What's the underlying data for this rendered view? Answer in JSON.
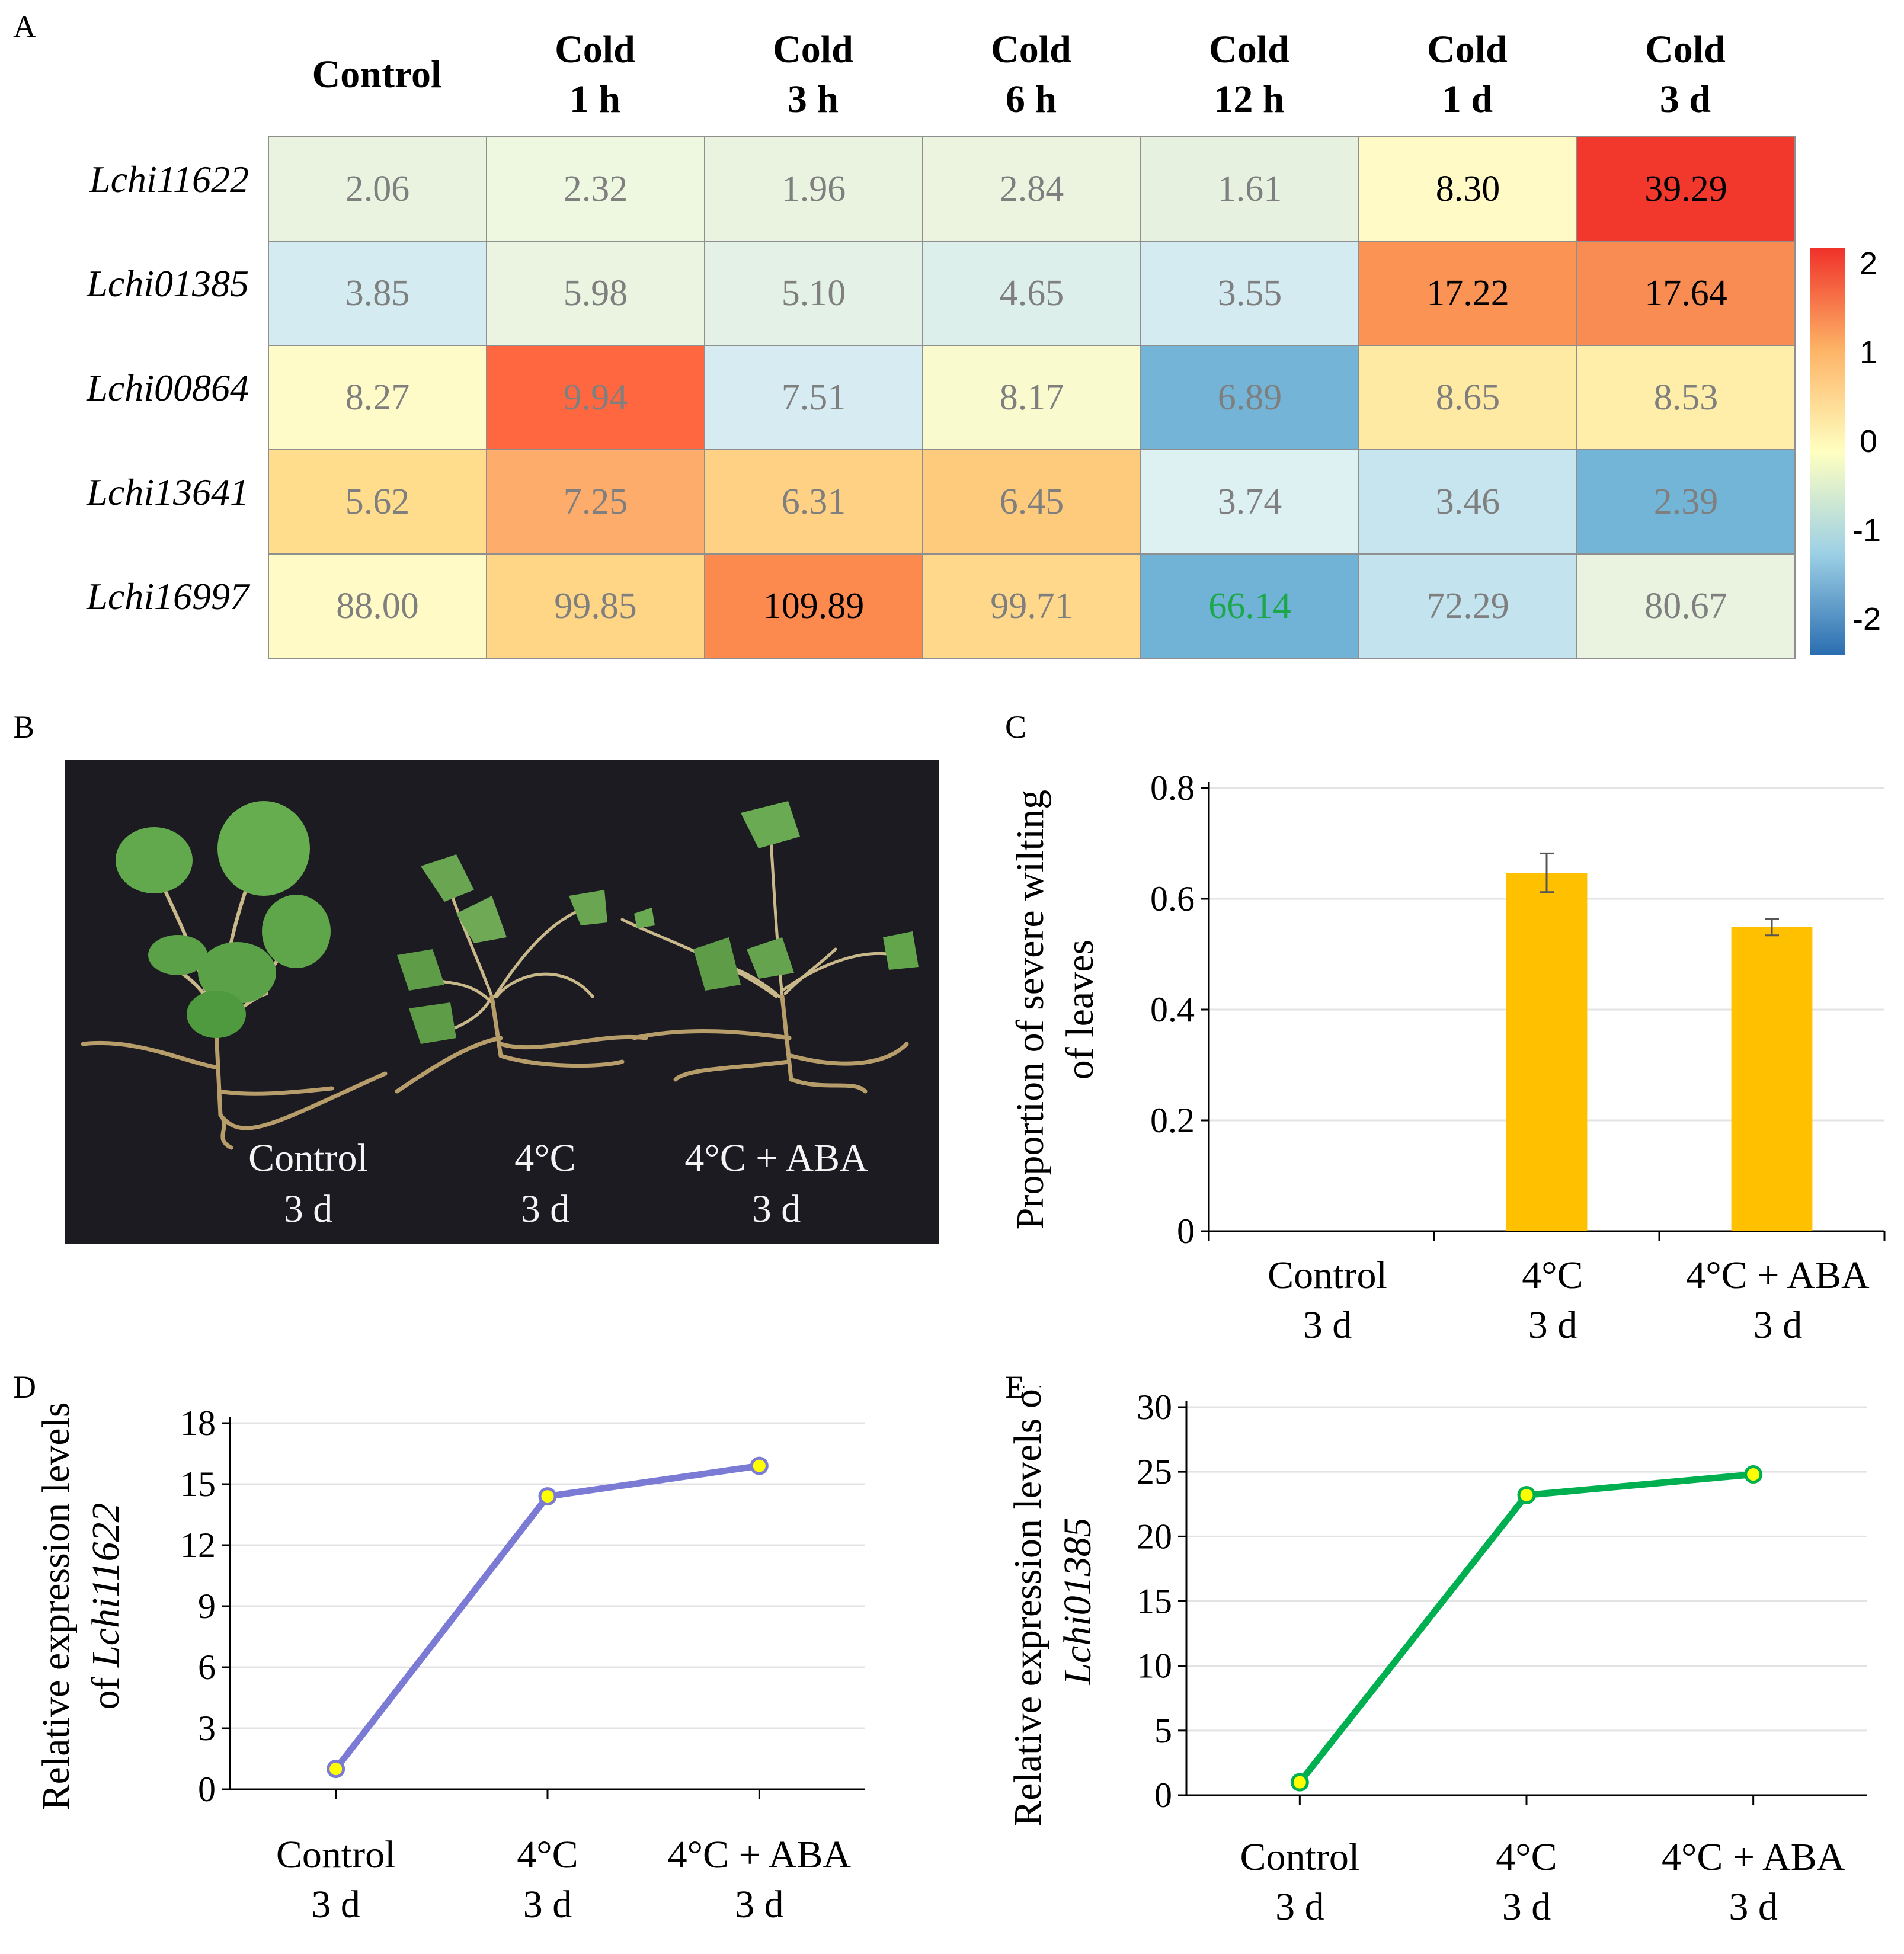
{
  "panels": {
    "a": "A",
    "b": "B",
    "c": "C",
    "d": "D",
    "e": "E"
  },
  "heatmap": {
    "columns": [
      {
        "line1": "Control",
        "line2": ""
      },
      {
        "line1": "Cold",
        "line2": "1 h"
      },
      {
        "line1": "Cold",
        "line2": "3 h"
      },
      {
        "line1": "Cold",
        "line2": "6 h"
      },
      {
        "line1": "Cold",
        "line2": "12 h"
      },
      {
        "line1": "Cold",
        "line2": "1 d"
      },
      {
        "line1": "Cold",
        "line2": "3 d"
      }
    ],
    "rows": [
      {
        "gene": "Lchi11622",
        "values": [
          "2.06",
          "2.32",
          "1.96",
          "2.84",
          "1.61",
          "8.30",
          "39.29"
        ],
        "colors": [
          "#e9f3df",
          "#eef7df",
          "#e9f3df",
          "#ecf4df",
          "#e6f1e0",
          "#fffac6",
          "#f2382c"
        ],
        "text_colors": [
          "#7f7f7f",
          "#7f7f7f",
          "#7f7f7f",
          "#7f7f7f",
          "#7f7f7f",
          "#000000",
          "#000000"
        ]
      },
      {
        "gene": "Lchi01385",
        "values": [
          "3.85",
          "5.98",
          "5.10",
          "4.65",
          "3.55",
          "17.22",
          "17.64"
        ],
        "colors": [
          "#d4ecf1",
          "#eaf4e0",
          "#e3f1e6",
          "#dcefea",
          "#d3ebf1",
          "#fa9353",
          "#f98c52"
        ],
        "text_colors": [
          "#7f7f7f",
          "#7f7f7f",
          "#7f7f7f",
          "#7f7f7f",
          "#7f7f7f",
          "#000000",
          "#000000"
        ]
      },
      {
        "gene": "Lchi00864",
        "values": [
          "8.27",
          "9.94",
          "7.51",
          "8.17",
          "6.89",
          "8.65",
          "8.53"
        ],
        "colors": [
          "#fffbc9",
          "#fe6740",
          "#d7ecf2",
          "#f9fbcf",
          "#74b5d7",
          "#ffeaa3",
          "#ffeeaa"
        ],
        "text_colors": [
          "#7f7f7f",
          "#7f7f7f",
          "#7f7f7f",
          "#7f7f7f",
          "#7f7f7f",
          "#7f7f7f",
          "#7f7f7f"
        ]
      },
      {
        "gene": "Lchi13641",
        "values": [
          "5.62",
          "7.25",
          "6.31",
          "6.45",
          "3.74",
          "3.46",
          "2.39"
        ],
        "colors": [
          "#ffdd8c",
          "#fdac6b",
          "#ffd184",
          "#fecb7c",
          "#ddf0f2",
          "#c6e5ef",
          "#72b5d6"
        ],
        "text_colors": [
          "#7f7f7f",
          "#7f7f7f",
          "#7f7f7f",
          "#7f7f7f",
          "#7f7f7f",
          "#7f7f7f",
          "#7f7f7f"
        ]
      },
      {
        "gene": "Lchi16997",
        "values": [
          "88.00",
          "99.85",
          "109.89",
          "99.71",
          "66.14",
          "72.29",
          "80.67"
        ],
        "colors": [
          "#fffac6",
          "#ffd686",
          "#fc8a4f",
          "#ffd88b",
          "#70b3d6",
          "#c3e4ef",
          "#e9f3e0"
        ],
        "text_colors": [
          "#7f7f7f",
          "#7f7f7f",
          "#000000",
          "#7f7f7f",
          "#1ca84a",
          "#7f7f7f",
          "#7f7f7f"
        ]
      }
    ],
    "colorbar": {
      "ticks": [
        "2",
        "1",
        "0",
        "-1",
        "-2"
      ]
    }
  },
  "photo": {
    "labels": [
      {
        "line1": "Control",
        "line2": "3 d"
      },
      {
        "line1": "4°C",
        "line2": "3 d"
      },
      {
        "line1": "4°C + ABA",
        "line2": "3 d"
      }
    ]
  },
  "chart_data": [
    {
      "id": "C",
      "type": "bar",
      "categories": [
        [
          "Control",
          "3 d"
        ],
        [
          "4°C",
          "3 d"
        ],
        [
          "4°C + ABA",
          "3 d"
        ]
      ],
      "values": [
        0,
        0.647,
        0.549
      ],
      "errors": [
        0,
        0.035,
        0.015
      ],
      "ylabel": [
        "Proportion of severe wilting",
        "of leaves"
      ],
      "ylim": [
        0,
        0.8
      ],
      "yticks": [
        0,
        0.2,
        0.4,
        0.6,
        0.8
      ],
      "ytick_labels": [
        "0",
        "0.2",
        "0.4",
        "0.6",
        "0.8"
      ],
      "color": "#ffc000",
      "grid": true
    },
    {
      "id": "D",
      "type": "line",
      "categories": [
        [
          "Control",
          "3 d"
        ],
        [
          "4°C",
          "3 d"
        ],
        [
          "4°C + ABA",
          "3 d"
        ]
      ],
      "values": [
        1.0,
        14.4,
        15.9
      ],
      "ylabel": [
        "Relative expression levels",
        "of ",
        "Lchi11622"
      ],
      "ylim": [
        0,
        18
      ],
      "yticks": [
        0,
        3,
        6,
        9,
        12,
        15,
        18
      ],
      "ytick_labels": [
        "0",
        "3",
        "6",
        "9",
        "12",
        "15",
        "18"
      ],
      "color": "#7b7bd6",
      "marker_color": "#ffff00",
      "grid": true
    },
    {
      "id": "E",
      "type": "line",
      "categories": [
        [
          "Control",
          "3 d"
        ],
        [
          "4°C",
          "3 d"
        ],
        [
          "4°C + ABA",
          "3 d"
        ]
      ],
      "values": [
        1.0,
        23.2,
        24.8
      ],
      "ylabel": [
        "Relative expression levels of",
        "Lchi01385"
      ],
      "ylim": [
        0,
        30
      ],
      "yticks": [
        0,
        5,
        10,
        15,
        20,
        25,
        30
      ],
      "ytick_labels": [
        "0",
        "5",
        "10",
        "15",
        "20",
        "25",
        "30"
      ],
      "color": "#00b050",
      "marker_color": "#ffff00",
      "grid": true
    }
  ]
}
